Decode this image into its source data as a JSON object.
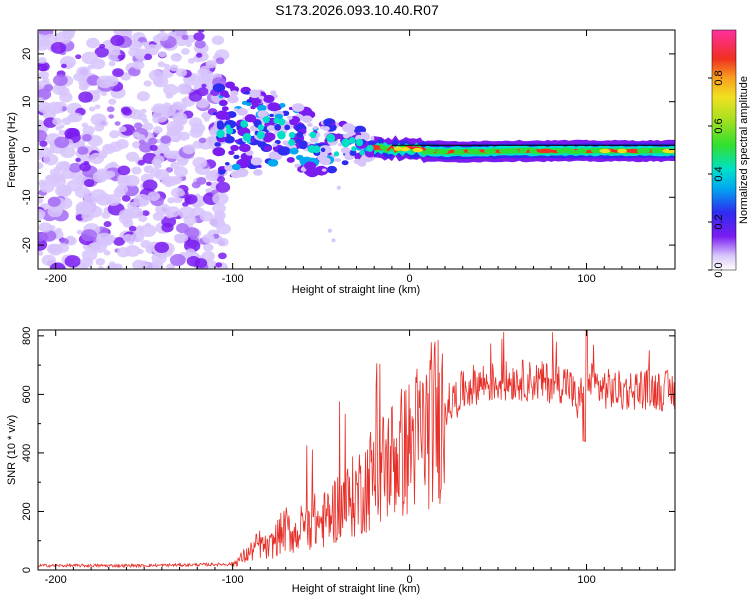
{
  "title": "S173.2026.093.10.40.R07",
  "colors": {
    "snr_line": "#e8302a",
    "trace_core": "#ff2222",
    "noise_dark": "#7a1cf0",
    "noise_light": "#d7c4fb"
  },
  "chart_data": [
    {
      "type": "heatmap",
      "name": "spectrogram",
      "xlabel": "Height of straight line (km)",
      "ylabel": "Frequency (Hz)",
      "xlim": [
        -210,
        150
      ],
      "ylim": [
        -25,
        25
      ],
      "xticks": [
        -200,
        -100,
        0,
        100
      ],
      "yticks": [
        -20,
        -10,
        0,
        10,
        20
      ],
      "colorbar": {
        "label": "Normalized spectral amplitude",
        "range": [
          0.0,
          1.0
        ],
        "ticks": [
          "0.0",
          "0.2",
          "0.4",
          "0.6",
          "0.8"
        ],
        "tick_values": [
          0.0,
          0.2,
          0.4,
          0.6,
          0.8
        ]
      },
      "ridge": {
        "description": "dominant frequency track",
        "points": [
          [
            -110,
            4
          ],
          [
            -90,
            3.5
          ],
          [
            -75,
            5
          ],
          [
            -60,
            2
          ],
          [
            -50,
            0.5
          ],
          [
            -40,
            1
          ],
          [
            -30,
            0.5
          ],
          [
            -20,
            0.5
          ],
          [
            0,
            0
          ],
          [
            20,
            -0.5
          ],
          [
            60,
            -0.3
          ],
          [
            100,
            -0.3
          ],
          [
            150,
            -0.3
          ]
        ]
      }
    },
    {
      "type": "line",
      "name": "snr",
      "xlabel": "Height of straight line (km)",
      "ylabel": "SNR (10 * v/v)",
      "xlim": [
        -210,
        150
      ],
      "ylim": [
        0,
        820
      ],
      "xticks": [
        -200,
        -100,
        0,
        100
      ],
      "yticks": [
        0,
        200,
        400,
        600,
        800
      ],
      "series": [
        {
          "name": "SNR",
          "x": [
            -210,
            -180,
            -150,
            -120,
            -100,
            -95,
            -90,
            -85,
            -80,
            -75,
            -70,
            -65,
            -60,
            -55,
            -50,
            -45,
            -40,
            -35,
            -30,
            -25,
            -20,
            -15,
            -10,
            -5,
            0,
            5,
            10,
            15,
            20,
            25,
            30,
            35,
            40,
            50,
            60,
            70,
            80,
            90,
            95,
            100,
            105,
            110,
            120,
            130,
            140,
            150
          ],
          "y": [
            15,
            15,
            15,
            18,
            20,
            40,
            60,
            90,
            70,
            110,
            140,
            120,
            150,
            170,
            160,
            190,
            220,
            230,
            260,
            290,
            330,
            350,
            380,
            400,
            420,
            460,
            480,
            520,
            560,
            580,
            610,
            630,
            640,
            640,
            650,
            645,
            640,
            640,
            560,
            650,
            630,
            620,
            610,
            620,
            615,
            610
          ]
        }
      ]
    }
  ]
}
